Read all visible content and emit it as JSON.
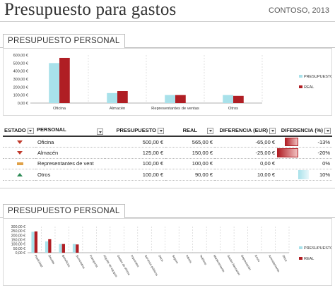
{
  "header": {
    "title": "Presupuesto para gastos",
    "company": "CONTOSO, 2013"
  },
  "section1": {
    "tab_label": "PRESUPUESTO PERSONAL"
  },
  "section2": {
    "tab_label": "PRESUPUESTO PERSONAL"
  },
  "colors": {
    "presupuesto": "#a8e1ea",
    "real": "#b01e24",
    "down": "#c0392b",
    "up": "#2e8b57",
    "flat": "#e0a24a"
  },
  "chart_data": [
    {
      "type": "bar",
      "categories": [
        "Oficina",
        "Almacén",
        "Representantes de ventas",
        "Otros"
      ],
      "series": [
        {
          "name": "PRESUPUESTO",
          "values": [
            500,
            125,
            100,
            100
          ]
        },
        {
          "name": "REAL",
          "values": [
            565,
            150,
            100,
            90
          ]
        }
      ],
      "yticks": [
        "0,00 €",
        "100,00 €",
        "200,00 €",
        "300,00 €",
        "400,00 €",
        "500,00 €",
        "600,00 €"
      ],
      "ylim": [
        0,
        600
      ],
      "legend": "right"
    },
    {
      "type": "bar",
      "categories": [
        "Publicidad",
        "Deudas",
        "Beneficios",
        "Suministros",
        "Franquicia",
        "Alquiler de equipos",
        "Gastos de oficina",
        "Impuestos",
        "Servicios públicos",
        "Otros",
        "Seguro",
        "Interés",
        "Teléfono",
        "Mantenimiento",
        "Gastos bancarios",
        "Depreciación",
        "Envío",
        "Arrendamiento",
        "Otros"
      ],
      "series": [
        {
          "name": "PRESUPUESTO",
          "values": [
            240,
            130,
            100,
            100,
            0,
            0,
            0,
            0,
            0,
            0,
            0,
            0,
            0,
            0,
            0,
            0,
            0,
            0,
            0
          ]
        },
        {
          "name": "REAL",
          "values": [
            245,
            155,
            100,
            95,
            0,
            0,
            0,
            0,
            0,
            0,
            0,
            0,
            0,
            0,
            0,
            0,
            0,
            0,
            0
          ]
        }
      ],
      "yticks": [
        "0,00 €",
        "50,00 €",
        "100,00 €",
        "150,00 €",
        "200,00 €",
        "250,00 €",
        "300,00 €"
      ],
      "ylim": [
        0,
        300
      ],
      "legend": "right"
    }
  ],
  "table": {
    "headers": {
      "estado": "ESTADO",
      "personal": "PERSONAL",
      "presupuesto": "PRESUPUESTO",
      "real": "REAL",
      "diferencia_eur": "DIFERENCIA (EUR)",
      "diferencia_pct": "DIFERENCIA (%)"
    },
    "rows": [
      {
        "estado": "down",
        "personal": "Oficina",
        "presupuesto": "500,00 €",
        "real": "565,00 €",
        "diferencia_eur": "-65,00 €",
        "diferencia_pct": "-13%",
        "pct_value": -13
      },
      {
        "estado": "down",
        "personal": "Almacén",
        "presupuesto": "125,00 €",
        "real": "150,00 €",
        "diferencia_eur": "-25,00 €",
        "diferencia_pct": "-20%",
        "pct_value": -20
      },
      {
        "estado": "flat",
        "personal": "Representantes de vent",
        "presupuesto": "100,00 €",
        "real": "100,00 €",
        "diferencia_eur": "0,00 €",
        "diferencia_pct": "0%",
        "pct_value": 0
      },
      {
        "estado": "up",
        "personal": "Otros",
        "presupuesto": "100,00 €",
        "real": "90,00 €",
        "diferencia_eur": "10,00 €",
        "diferencia_pct": "10%",
        "pct_value": 10
      }
    ]
  }
}
